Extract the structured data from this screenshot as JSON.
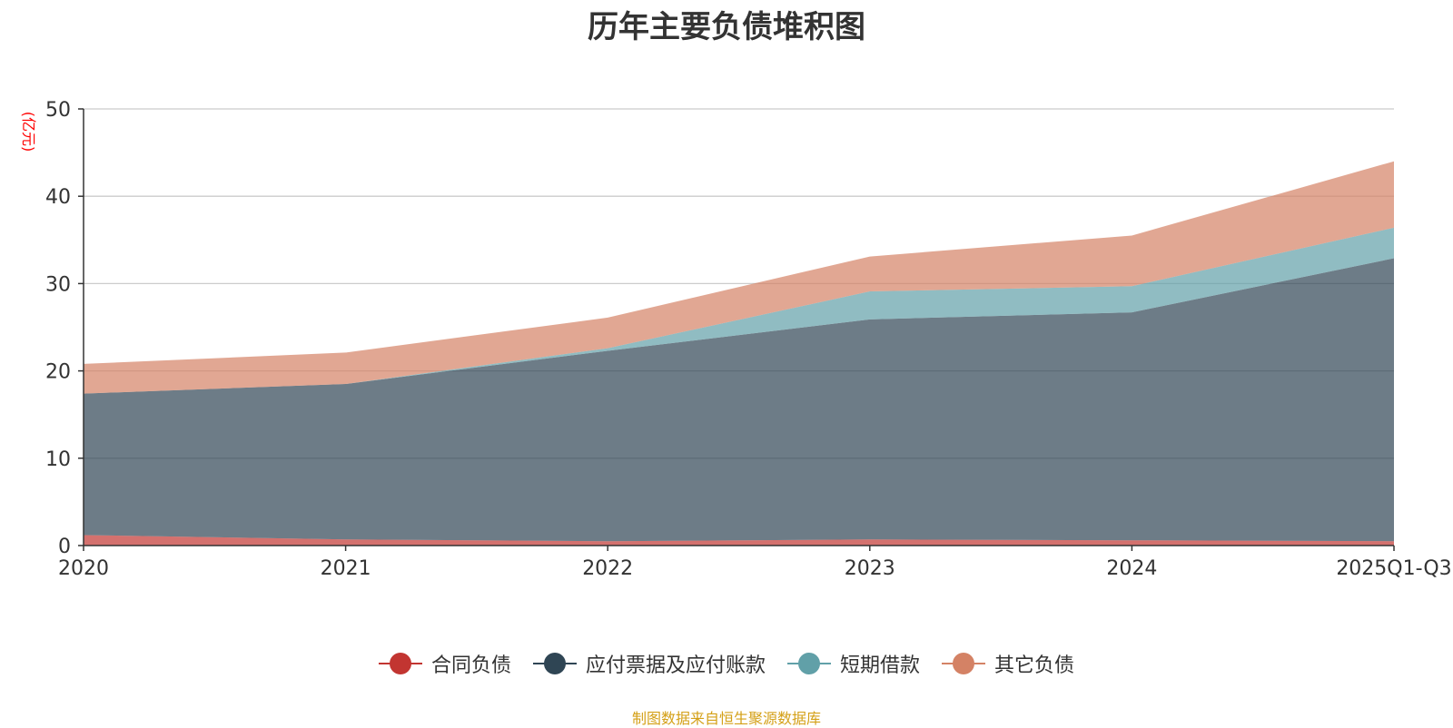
{
  "colors": {
    "合同负债": "#c23531",
    "应付票据及应付账款": "#2f4554",
    "短期借款": "#61a0a8",
    "其它负债": "#d48265",
    "axis": "#333333",
    "grid": "#cccccc",
    "unit": "#ff0000",
    "footer": "#d4a017"
  },
  "footer": "制图数据来自恒生聚源数据库",
  "chart_data": {
    "type": "area",
    "stacked": true,
    "title": "历年主要负债堆积图",
    "ylabel": "(亿元)",
    "xlabel": "",
    "categories": [
      "2020",
      "2021",
      "2022",
      "2023",
      "2024",
      "2025Q1-Q3"
    ],
    "ylim": [
      0,
      50
    ],
    "yticks": [
      0,
      10,
      20,
      30,
      40,
      50
    ],
    "grid": true,
    "legend_position": "bottom",
    "series": [
      {
        "name": "合同负债",
        "values": [
          1.2,
          0.7,
          0.5,
          0.7,
          0.6,
          0.5
        ]
      },
      {
        "name": "应付票据及应付账款",
        "values": [
          16.2,
          17.8,
          21.8,
          25.2,
          26.1,
          32.4
        ]
      },
      {
        "name": "短期借款",
        "values": [
          0.0,
          0.0,
          0.3,
          3.2,
          3.0,
          3.5
        ]
      },
      {
        "name": "其它负债",
        "values": [
          3.4,
          3.6,
          3.5,
          4.0,
          5.8,
          7.6
        ]
      }
    ]
  }
}
